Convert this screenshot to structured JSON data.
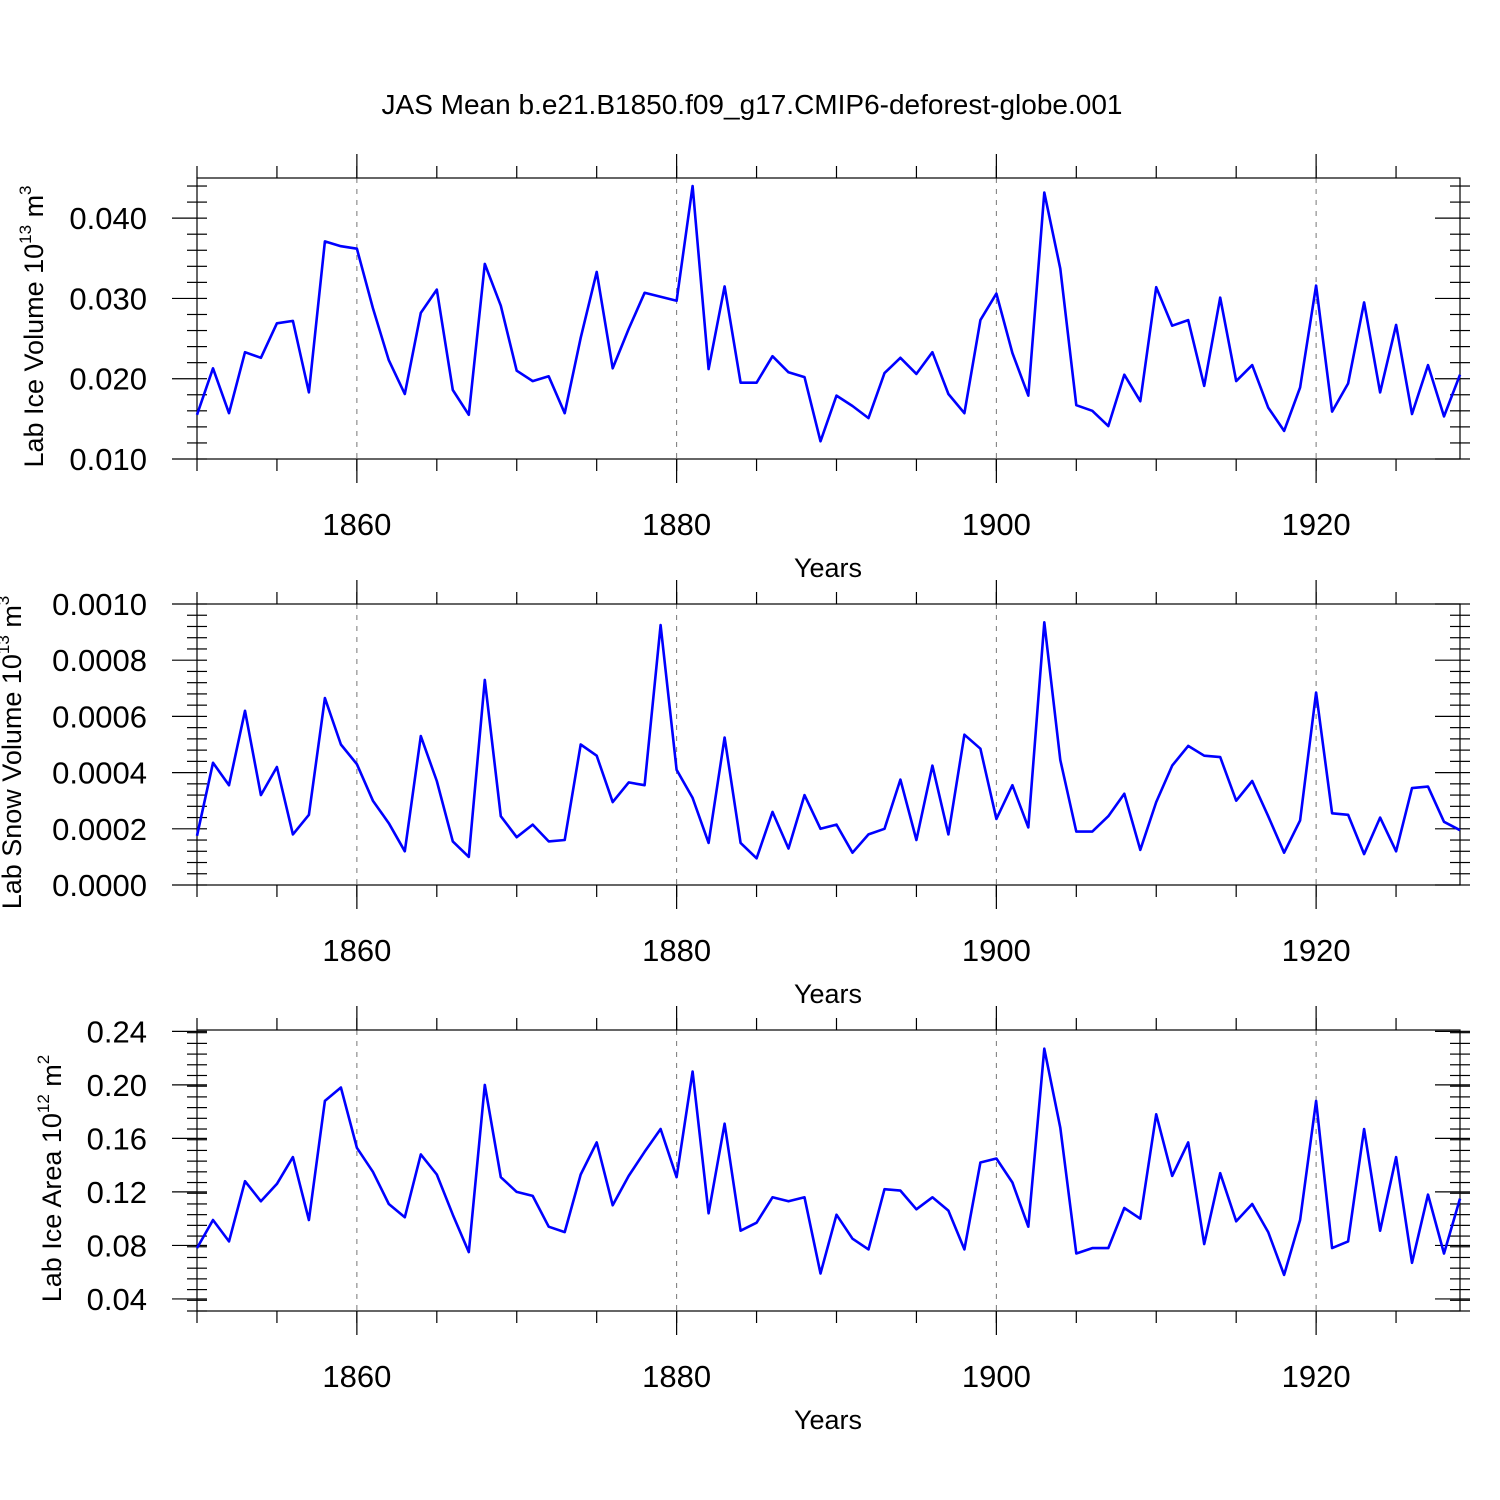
{
  "title": "JAS Mean b.e21.B1850.f09_g17.CMIP6-deforest-globe.001",
  "colors": {
    "line": "#0000ff",
    "axis": "#000000",
    "grid": "#777777"
  },
  "chart_data": [
    {
      "type": "line",
      "ylabel_base": "Lab Ice Volume 10",
      "ylabel_exp": "13",
      "ylabel_unit": "m",
      "ylabel_unit_exp": "3",
      "xlabel": "Years",
      "xlim": [
        1850,
        1929
      ],
      "ylim": [
        0.01,
        0.045
      ],
      "yticks": [
        0.01,
        0.02,
        0.03,
        0.04
      ],
      "ytick_labels": [
        "0.010",
        "0.020",
        "0.030",
        "0.040"
      ],
      "xticks": [
        1860,
        1880,
        1900,
        1920
      ],
      "xtick_labels": [
        "1860",
        "1880",
        "1900",
        "1920"
      ],
      "series": [
        {
          "name": "Lab Ice Volume",
          "x_start": 1850,
          "values": [
            0.0155,
            0.0213,
            0.0157,
            0.0233,
            0.0226,
            0.0269,
            0.0272,
            0.0183,
            0.0371,
            0.0365,
            0.0362,
            0.0288,
            0.0223,
            0.0181,
            0.0282,
            0.0311,
            0.0186,
            0.0155,
            0.0343,
            0.0291,
            0.021,
            0.0197,
            0.0203,
            0.0157,
            0.0251,
            0.0333,
            0.0213,
            0.0262,
            0.0307,
            0.0302,
            0.0297,
            0.044,
            0.0212,
            0.0315,
            0.0195,
            0.0195,
            0.0228,
            0.0208,
            0.0202,
            0.0122,
            0.0179,
            0.0166,
            0.0151,
            0.0207,
            0.0226,
            0.0206,
            0.0233,
            0.0181,
            0.0157,
            0.0273,
            0.0306,
            0.0232,
            0.0179,
            0.0432,
            0.0337,
            0.0167,
            0.016,
            0.0141,
            0.0205,
            0.0172,
            0.0314,
            0.0266,
            0.0273,
            0.0191,
            0.0301,
            0.0197,
            0.0217,
            0.0164,
            0.0135,
            0.0189,
            0.0316,
            0.0159,
            0.0194,
            0.0295,
            0.0183,
            0.0267,
            0.0156,
            0.0217,
            0.0153,
            0.0205
          ]
        }
      ]
    },
    {
      "type": "line",
      "ylabel_base": "Lab Snow Volume 10",
      "ylabel_exp": "13",
      "ylabel_unit": "m",
      "ylabel_unit_exp": "3",
      "xlabel": "Years",
      "xlim": [
        1850,
        1929
      ],
      "ylim": [
        0.0,
        0.001
      ],
      "yticks": [
        0.0,
        0.0002,
        0.0004,
        0.0006,
        0.0008,
        0.001
      ],
      "ytick_labels": [
        "0.0000",
        "0.0002",
        "0.0004",
        "0.0006",
        "0.0008",
        "0.0010"
      ],
      "xticks": [
        1860,
        1880,
        1900,
        1920
      ],
      "xtick_labels": [
        "1860",
        "1880",
        "1900",
        "1920"
      ],
      "series": [
        {
          "name": "Lab Snow Volume",
          "x_start": 1850,
          "values": [
            0.000175,
            0.000435,
            0.000355,
            0.00062,
            0.00032,
            0.00042,
            0.00018,
            0.00025,
            0.000665,
            0.0005,
            0.00043,
            0.0003,
            0.00022,
            0.00012,
            0.00053,
            0.00037,
            0.000155,
            0.0001,
            0.00073,
            0.000245,
            0.00017,
            0.000215,
            0.000155,
            0.00016,
            0.0005,
            0.00046,
            0.000295,
            0.000365,
            0.000355,
            0.000925,
            0.00041,
            0.00031,
            0.00015,
            0.000525,
            0.00015,
            9.5e-05,
            0.00026,
            0.00013,
            0.00032,
            0.0002,
            0.000215,
            0.000115,
            0.00018,
            0.0002,
            0.000375,
            0.00016,
            0.000425,
            0.00018,
            0.000535,
            0.000485,
            0.000235,
            0.000355,
            0.000205,
            0.000935,
            0.000445,
            0.00019,
            0.00019,
            0.000245,
            0.000325,
            0.000125,
            0.000295,
            0.000425,
            0.000495,
            0.00046,
            0.000455,
            0.0003,
            0.00037,
            0.000245,
            0.000115,
            0.00023,
            0.000685,
            0.000255,
            0.00025,
            0.00011,
            0.00024,
            0.00012,
            0.000345,
            0.00035,
            0.000225,
            0.000195
          ]
        }
      ]
    },
    {
      "type": "line",
      "ylabel_base": "Lab Ice Area 10",
      "ylabel_exp": "12",
      "ylabel_unit": "m",
      "ylabel_unit_exp": "2",
      "xlabel": "Years",
      "xlim": [
        1850,
        1929
      ],
      "ylim": [
        0.031,
        0.241
      ],
      "yticks": [
        0.04,
        0.08,
        0.12,
        0.16,
        0.2,
        0.24
      ],
      "ytick_labels": [
        "0.04",
        "0.08",
        "0.12",
        "0.16",
        "0.20",
        "0.24"
      ],
      "xticks": [
        1860,
        1880,
        1900,
        1920
      ],
      "xtick_labels": [
        "1860",
        "1880",
        "1900",
        "1920"
      ],
      "series": [
        {
          "name": "Lab Ice Area",
          "x_start": 1850,
          "values": [
            0.078,
            0.099,
            0.083,
            0.128,
            0.113,
            0.126,
            0.146,
            0.099,
            0.188,
            0.198,
            0.153,
            0.135,
            0.111,
            0.101,
            0.148,
            0.133,
            0.103,
            0.075,
            0.2,
            0.131,
            0.12,
            0.117,
            0.094,
            0.09,
            0.133,
            0.157,
            0.11,
            0.132,
            0.15,
            0.167,
            0.131,
            0.21,
            0.104,
            0.171,
            0.091,
            0.097,
            0.116,
            0.113,
            0.116,
            0.059,
            0.103,
            0.085,
            0.077,
            0.122,
            0.121,
            0.107,
            0.116,
            0.106,
            0.077,
            0.142,
            0.145,
            0.127,
            0.094,
            0.227,
            0.168,
            0.074,
            0.078,
            0.078,
            0.108,
            0.1,
            0.178,
            0.132,
            0.157,
            0.081,
            0.134,
            0.098,
            0.111,
            0.09,
            0.058,
            0.099,
            0.188,
            0.078,
            0.083,
            0.167,
            0.091,
            0.146,
            0.067,
            0.118,
            0.074,
            0.115
          ]
        }
      ]
    }
  ]
}
